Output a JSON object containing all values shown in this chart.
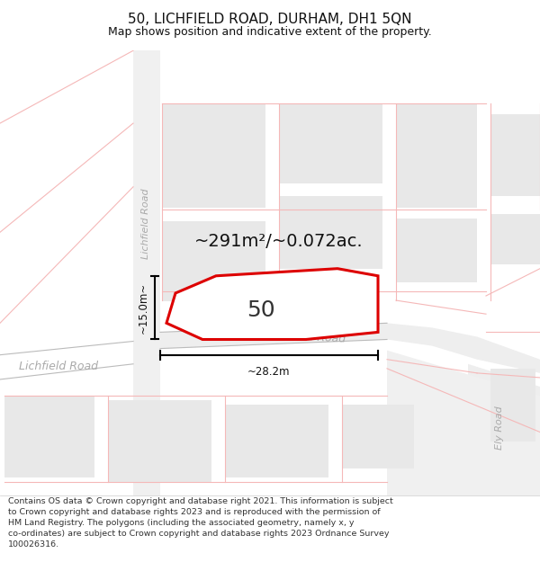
{
  "title": "50, LICHFIELD ROAD, DURHAM, DH1 5QN",
  "subtitle": "Map shows position and indicative extent of the property.",
  "footer": "Contains OS data © Crown copyright and database right 2021. This information is subject to Crown copyright and database rights 2023 and is reproduced with the permission of HM Land Registry. The polygons (including the associated geometry, namely x, y co-ordinates) are subject to Crown copyright and database rights 2023 Ordnance Survey 100026316.",
  "area_label": "~291m²/~0.072ac.",
  "property_number": "50",
  "width_label": "~28.2m",
  "height_label": "~15.0m~",
  "red_color": "#dd0000",
  "block_color": "#e8e8e8",
  "grid_line_color": "#f5b8b8",
  "road_line_color": "#c8c8c8",
  "map_bg": "#ffffff",
  "title_fontsize": 11,
  "subtitle_fontsize": 9,
  "area_fontsize": 14,
  "number_fontsize": 18
}
